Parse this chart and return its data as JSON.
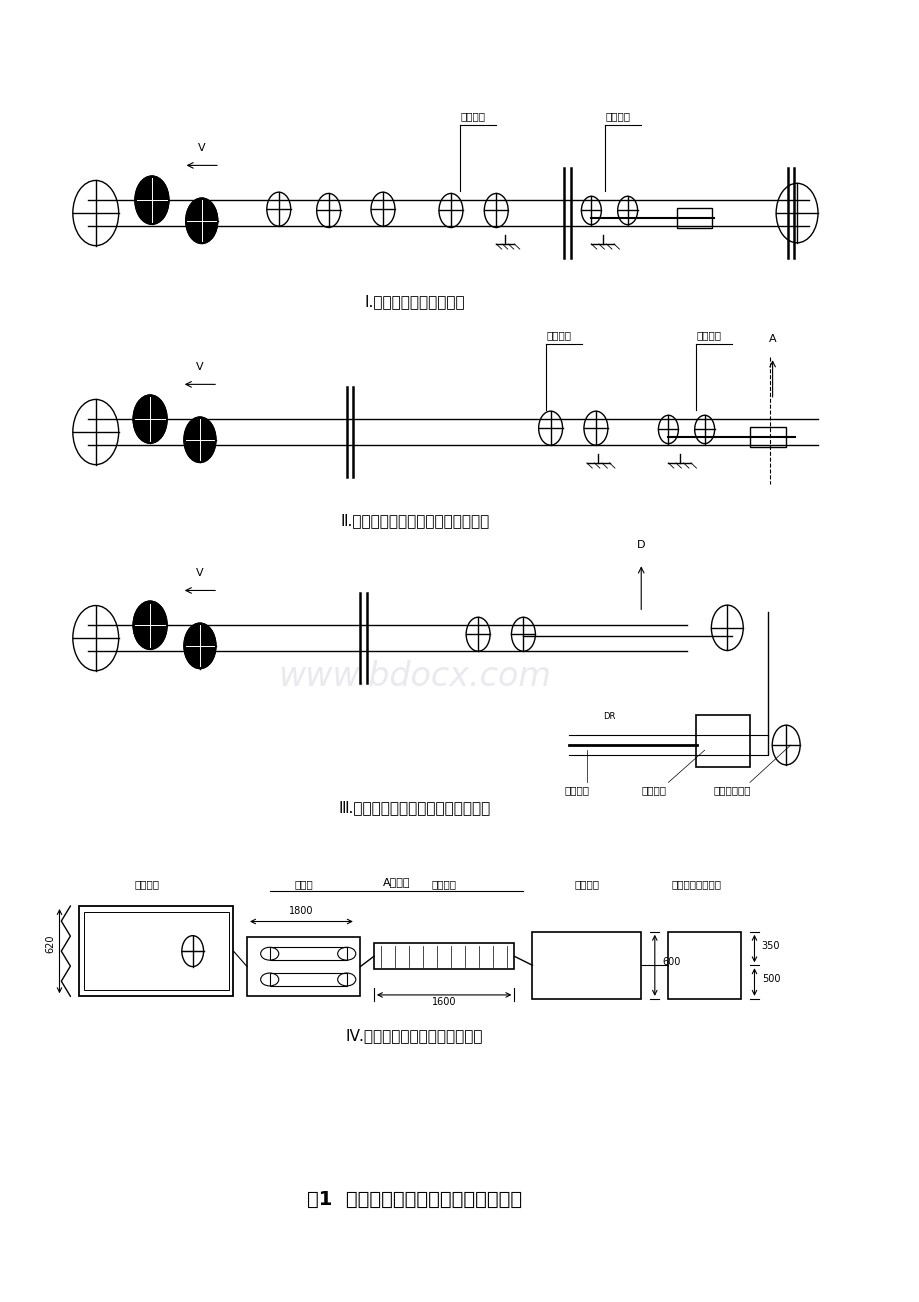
{
  "bg_color": "#ffffff",
  "page_width": 9.2,
  "page_height": 13.02,
  "watermark_text": "www.bdocx.com",
  "watermark_color": "#c8c8d8",
  "watermark_alpha": 0.4,
  "section_labels": [
    "Ⅰ.头部或中部拉紧示意图",
    "Ⅱ.尾部拉紧示意图（一般布置形式）",
    "Ⅲ.尾部拉紧示意图（特殊布置形式）",
    "Ⅳ.液压拉紧装置平面布置参考图"
  ],
  "fig_title": "图1  自控液压拉紧装置布置形式参考图",
  "label_lajin_xc": "拉紧小车",
  "label_lajin_yg": "拉紧油罐",
  "label_neng": "蓄能站",
  "label_pump": "液压泵站",
  "label_elec": "电控笱（壁挂式）",
  "label_water": "水平改向滑轮",
  "label_a_zoom": "A向放大",
  "label_V": "V",
  "label_A": "A",
  "label_D": "D",
  "label_DR": "DR",
  "dim_1800": "1800",
  "dim_620": "620",
  "dim_1600": "1600",
  "dim_600": "600",
  "dim_500": "500",
  "dim_350": "350",
  "line_color": "#000000",
  "text_color": "#000000",
  "label_fontsize": 7.5,
  "section_label_fontsize": 11,
  "fig_title_fontsize": 14
}
